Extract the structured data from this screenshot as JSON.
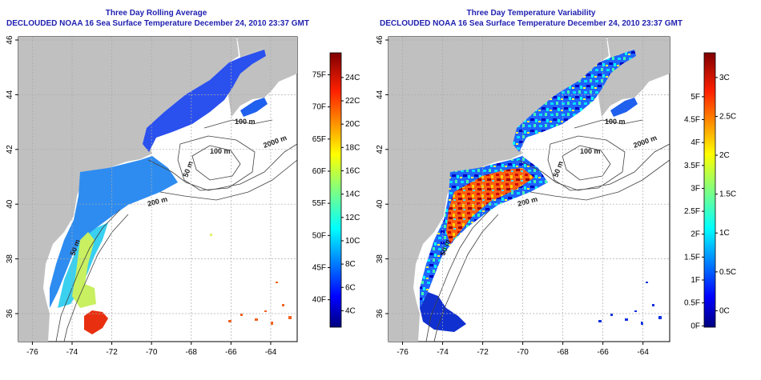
{
  "panels": [
    {
      "title": "Three Day Rolling Average",
      "subtitle": "DECLOUDED NOAA 16 Sea Surface Temperature December 24, 2010 23:37 GMT",
      "x_ticks": [
        "-76",
        "-74",
        "-72",
        "-70",
        "-68",
        "-66",
        "-64"
      ],
      "y_ticks": [
        "36",
        "38",
        "40",
        "42",
        "44",
        "46"
      ],
      "contour_labels": [
        "100 m",
        "100 m",
        "50 m",
        "2000 m",
        "200 m",
        "50 m"
      ],
      "colorbar": {
        "celsius_labels": [
          "24C",
          "22C",
          "20C",
          "18C",
          "16C",
          "14C",
          "12C",
          "10C",
          "8C",
          "6C",
          "4C"
        ],
        "fahrenheit_labels": [
          "75F",
          "70F",
          "65F",
          "60F",
          "55F",
          "50F",
          "45F",
          "40F"
        ]
      }
    },
    {
      "title": "Three Day Temperature Variability",
      "subtitle": "DECLOUDED NOAA 16 Sea Surface Temperature December 24, 2010 23:37 GMT",
      "x_ticks": [
        "-76",
        "-74",
        "-72",
        "-70",
        "-68",
        "-66",
        "-64"
      ],
      "y_ticks": [
        "36",
        "38",
        "40",
        "42",
        "44",
        "46"
      ],
      "contour_labels": [
        "100 m",
        "100 m",
        "50 m",
        "2000 m",
        "200 m",
        "50 m"
      ],
      "colorbar": {
        "celsius_labels": [
          "3C",
          "2.5C",
          "2C",
          "1.5C",
          "1C",
          "0.5C",
          "0C"
        ],
        "fahrenheit_labels": [
          "5F",
          "4.5F",
          "4F",
          "3.5F",
          "3F",
          "2.5F",
          "2F",
          "1.5F",
          "1F",
          "0.5F",
          "0F"
        ]
      }
    }
  ],
  "colors": {
    "title_text": "#1f1fb0",
    "land": "#c0c0c0",
    "grid": "#aaaaaa",
    "colormap": [
      "#00007f",
      "#0000ff",
      "#0080ff",
      "#00ffff",
      "#80ff80",
      "#ffff00",
      "#ff8000",
      "#ff0000",
      "#7f0000"
    ]
  }
}
